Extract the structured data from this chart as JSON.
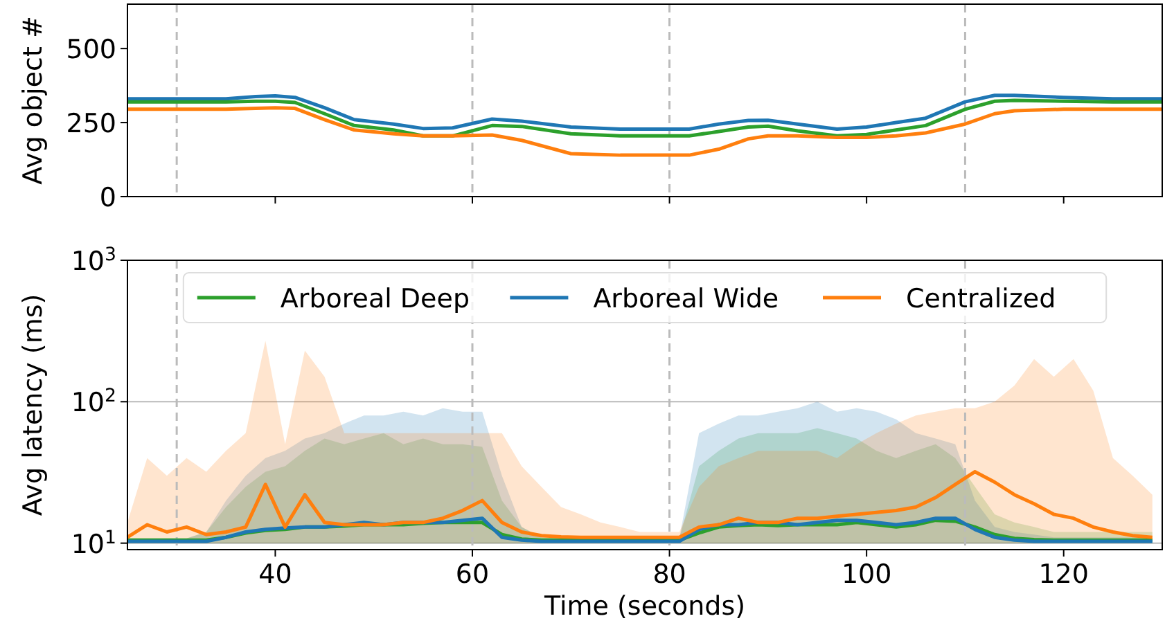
{
  "chart_data": [
    {
      "type": "line",
      "ylabel": "Avg object #",
      "x": [
        25,
        35,
        38,
        40,
        42,
        45,
        48,
        52,
        55,
        58,
        62,
        65,
        70,
        75,
        80,
        82,
        85,
        88,
        90,
        93,
        97,
        100,
        103,
        106,
        110,
        113,
        115,
        120,
        125,
        130
      ],
      "series": [
        {
          "color": "#1f77b4",
          "values": [
            330,
            330,
            338,
            340,
            335,
            300,
            260,
            245,
            230,
            232,
            262,
            255,
            235,
            228,
            228,
            228,
            245,
            257,
            258,
            245,
            228,
            235,
            250,
            265,
            320,
            342,
            342,
            335,
            330,
            330
          ]
        },
        {
          "color": "#2ca02c",
          "values": [
            320,
            320,
            322,
            322,
            318,
            280,
            240,
            225,
            205,
            205,
            240,
            237,
            212,
            205,
            205,
            205,
            220,
            235,
            238,
            222,
            205,
            210,
            225,
            240,
            295,
            322,
            325,
            322,
            320,
            320
          ]
        },
        {
          "color": "#ff7f0e",
          "values": [
            295,
            295,
            298,
            300,
            298,
            260,
            225,
            212,
            205,
            205,
            208,
            190,
            145,
            140,
            140,
            140,
            160,
            195,
            205,
            205,
            200,
            200,
            205,
            215,
            245,
            280,
            290,
            295,
            295,
            295
          ]
        }
      ],
      "xlim": [
        25,
        130
      ],
      "xticks": [
        40,
        60,
        80,
        100,
        120
      ],
      "ylim": [
        0,
        650
      ],
      "yticks": [
        0,
        250,
        500
      ],
      "tick_labels": "y",
      "ref_lines": [
        {
          "axis": "x",
          "value": 30,
          "color": "#bbbbbb",
          "line_style": "dashed"
        },
        {
          "axis": "x",
          "value": 60,
          "color": "#bbbbbb",
          "line_style": "dashed"
        },
        {
          "axis": "x",
          "value": 80,
          "color": "#bbbbbb",
          "line_style": "dashed"
        },
        {
          "axis": "x",
          "value": 110,
          "color": "#bbbbbb",
          "line_style": "dashed"
        }
      ]
    },
    {
      "type": "line",
      "xlabel": "Time (seconds)",
      "ylabel": "Avg latency (ms)",
      "x": [
        25,
        27,
        29,
        31,
        33,
        35,
        37,
        39,
        41,
        43,
        45,
        47,
        49,
        51,
        53,
        55,
        57,
        59,
        61,
        63,
        65,
        67,
        69,
        71,
        73,
        75,
        77,
        79,
        81,
        83,
        85,
        87,
        89,
        91,
        93,
        95,
        97,
        99,
        101,
        103,
        105,
        107,
        109,
        111,
        113,
        115,
        117,
        119,
        121,
        123,
        125,
        127,
        129
      ],
      "series": [
        {
          "name": "Arboreal Deep",
          "color": "#2ca02c",
          "values": [
            10.5,
            10.5,
            10.5,
            10.5,
            10.5,
            11,
            11.8,
            12.3,
            12.5,
            13,
            13,
            13.2,
            13.5,
            13.5,
            13.5,
            13.8,
            14,
            14,
            14,
            11.5,
            10.7,
            10.5,
            10.5,
            10.5,
            10.5,
            10.5,
            10.5,
            10.5,
            10.5,
            11.8,
            13,
            13.3,
            13.5,
            13.3,
            13.5,
            13.5,
            13.5,
            14,
            13.5,
            13,
            13.5,
            14.5,
            14.3,
            13,
            11.5,
            10.8,
            10.6,
            10.5,
            10.5,
            10.5,
            10.5,
            10.5,
            10.5
          ],
          "lower": [
            10,
            10,
            10,
            10,
            10,
            10,
            10,
            10,
            10,
            10,
            10,
            10,
            10,
            10,
            10,
            10,
            10,
            10,
            10,
            10,
            10,
            10,
            10,
            10,
            10,
            10,
            10,
            10,
            10,
            10,
            10,
            10,
            10,
            10,
            10,
            10,
            10,
            10,
            10,
            10,
            10,
            10,
            10,
            10,
            10,
            10,
            10,
            10,
            10,
            10,
            10,
            10,
            10
          ],
          "upper": [
            10.8,
            10.8,
            10.8,
            10.8,
            12,
            18,
            25,
            32,
            35,
            45,
            55,
            50,
            55,
            60,
            50,
            55,
            50,
            50,
            48,
            20,
            13,
            11,
            10.8,
            10.8,
            10.8,
            10.8,
            10.8,
            10.8,
            10.8,
            35,
            45,
            55,
            60,
            60,
            60,
            65,
            60,
            55,
            45,
            40,
            45,
            50,
            40,
            25,
            16,
            14,
            13,
            12,
            12,
            12,
            12,
            12,
            12
          ]
        },
        {
          "name": "Arboreal Wide",
          "color": "#1f77b4",
          "values": [
            10.3,
            10.3,
            10.3,
            10.3,
            10.3,
            11,
            12,
            12.5,
            12.8,
            13,
            13,
            13.5,
            14,
            13.5,
            14,
            14,
            14,
            14.5,
            15,
            11,
            10.5,
            10.3,
            10.3,
            10.3,
            10.3,
            10.3,
            10.3,
            10.3,
            10.3,
            12.5,
            13.5,
            13.5,
            14,
            14,
            13.5,
            14,
            14.5,
            14.5,
            14,
            13.5,
            14,
            15,
            15,
            12.5,
            11,
            10.5,
            10.3,
            10.3,
            10.3,
            10.3,
            10.3,
            10.3,
            10.3
          ],
          "lower": [
            10,
            10,
            10,
            10,
            10,
            10,
            10,
            10,
            10,
            10,
            10,
            10,
            10,
            10,
            10,
            10,
            10,
            10,
            10,
            10,
            10,
            10,
            10,
            10,
            10,
            10,
            10,
            10,
            10,
            10,
            10,
            10,
            10,
            10,
            10,
            10,
            10,
            10,
            10,
            10,
            10,
            10,
            10,
            10,
            10,
            10,
            10,
            10,
            10,
            10,
            10,
            10,
            10
          ],
          "upper": [
            10.8,
            10.8,
            10.8,
            10.8,
            12,
            20,
            30,
            40,
            45,
            55,
            60,
            70,
            80,
            80,
            85,
            80,
            90,
            85,
            85,
            30,
            13,
            11,
            10.8,
            10.8,
            10.8,
            10.8,
            10.8,
            10.8,
            10.8,
            60,
            70,
            80,
            80,
            85,
            90,
            100,
            85,
            90,
            85,
            75,
            60,
            55,
            50,
            20,
            13,
            12,
            11.5,
            11,
            11,
            11,
            11,
            11,
            11
          ]
        },
        {
          "name": "Centralized",
          "color": "#ff7f0e",
          "values": [
            11,
            13.5,
            12,
            13,
            11.5,
            12,
            13,
            26,
            13,
            22,
            14,
            13.5,
            13.5,
            13.5,
            14,
            14,
            15,
            17,
            20,
            14,
            12,
            11.3,
            11.1,
            11,
            11,
            11,
            11,
            11,
            11,
            13,
            13.5,
            15,
            14,
            14,
            15,
            15,
            15.5,
            16,
            16.5,
            17,
            18,
            21,
            26,
            32,
            27,
            22,
            19,
            16,
            15,
            13,
            12,
            11.3,
            11
          ],
          "lower": [
            10,
            10,
            10,
            10,
            10,
            10,
            10,
            10,
            10,
            10,
            10,
            10,
            10,
            10,
            10,
            10,
            10,
            10,
            10,
            10,
            10,
            10,
            10,
            10,
            10,
            10,
            10,
            10,
            10,
            10,
            10,
            10,
            10,
            10,
            10,
            10,
            10,
            10,
            10,
            10,
            10,
            10,
            10,
            10,
            10,
            10,
            10,
            10,
            10,
            10,
            10,
            10,
            10
          ],
          "upper": [
            14,
            40,
            30,
            40,
            32,
            45,
            60,
            270,
            50,
            230,
            150,
            60,
            60,
            60,
            60,
            60,
            60,
            60,
            60,
            60,
            35,
            25,
            18,
            16,
            14,
            13,
            12,
            12,
            12,
            25,
            35,
            40,
            45,
            45,
            45,
            45,
            40,
            50,
            60,
            70,
            80,
            85,
            90,
            90,
            100,
            130,
            200,
            150,
            200,
            120,
            40,
            30,
            22
          ]
        }
      ],
      "xlim": [
        25,
        130
      ],
      "xticks": [
        40,
        60,
        80,
        100,
        120
      ],
      "ylim": [
        9,
        1000
      ],
      "log": "y",
      "grid": "y",
      "legend": "top",
      "yticks": [
        {
          "value": 10,
          "label": "10$^{1}$"
        },
        {
          "value": 100,
          "label": "10$^{2}$"
        },
        {
          "value": 1000,
          "label": "10$^{3}$"
        }
      ],
      "ref_lines": [
        {
          "axis": "x",
          "value": 30,
          "color": "#bbbbbb",
          "line_style": "dashed"
        },
        {
          "axis": "x",
          "value": 60,
          "color": "#bbbbbb",
          "line_style": "dashed"
        },
        {
          "axis": "x",
          "value": 80,
          "color": "#bbbbbb",
          "line_style": "dashed"
        },
        {
          "axis": "x",
          "value": 110,
          "color": "#bbbbbb",
          "line_style": "dashed"
        }
      ]
    }
  ]
}
